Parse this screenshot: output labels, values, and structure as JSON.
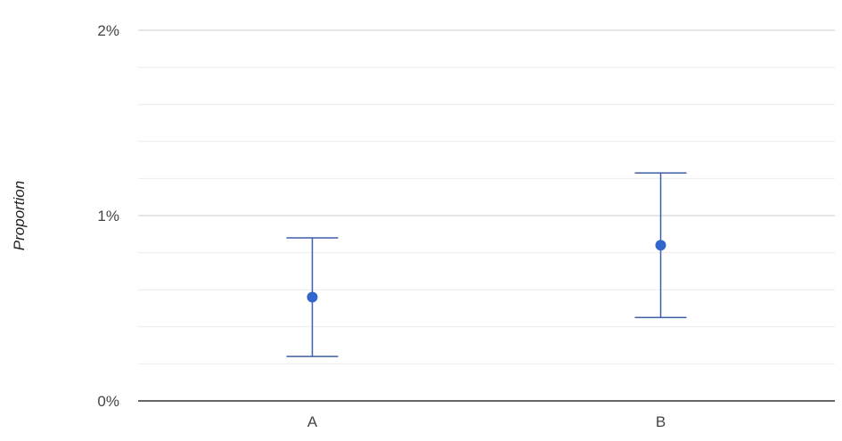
{
  "chart_data": {
    "type": "scatter",
    "title": "",
    "xlabel": "",
    "ylabel": "Proportion",
    "categories": [
      "A",
      "B"
    ],
    "series": [
      {
        "values": [
          0.0056,
          0.0084
        ],
        "error_low": [
          0.0024,
          0.0045
        ],
        "error_high": [
          0.0088,
          0.0123
        ]
      }
    ],
    "ylim": [
      0,
      0.02
    ],
    "y_ticks": [
      0,
      0.01,
      0.02
    ],
    "y_tick_labels": [
      "0%",
      "1%",
      "2%"
    ],
    "grid": true,
    "legend": "none",
    "colors": {
      "point": "#3366cc",
      "error_bar": "#3f5ea8",
      "major_grid": "#cccccc",
      "minor_grid": "#ebebeb",
      "baseline": "#333333"
    }
  }
}
